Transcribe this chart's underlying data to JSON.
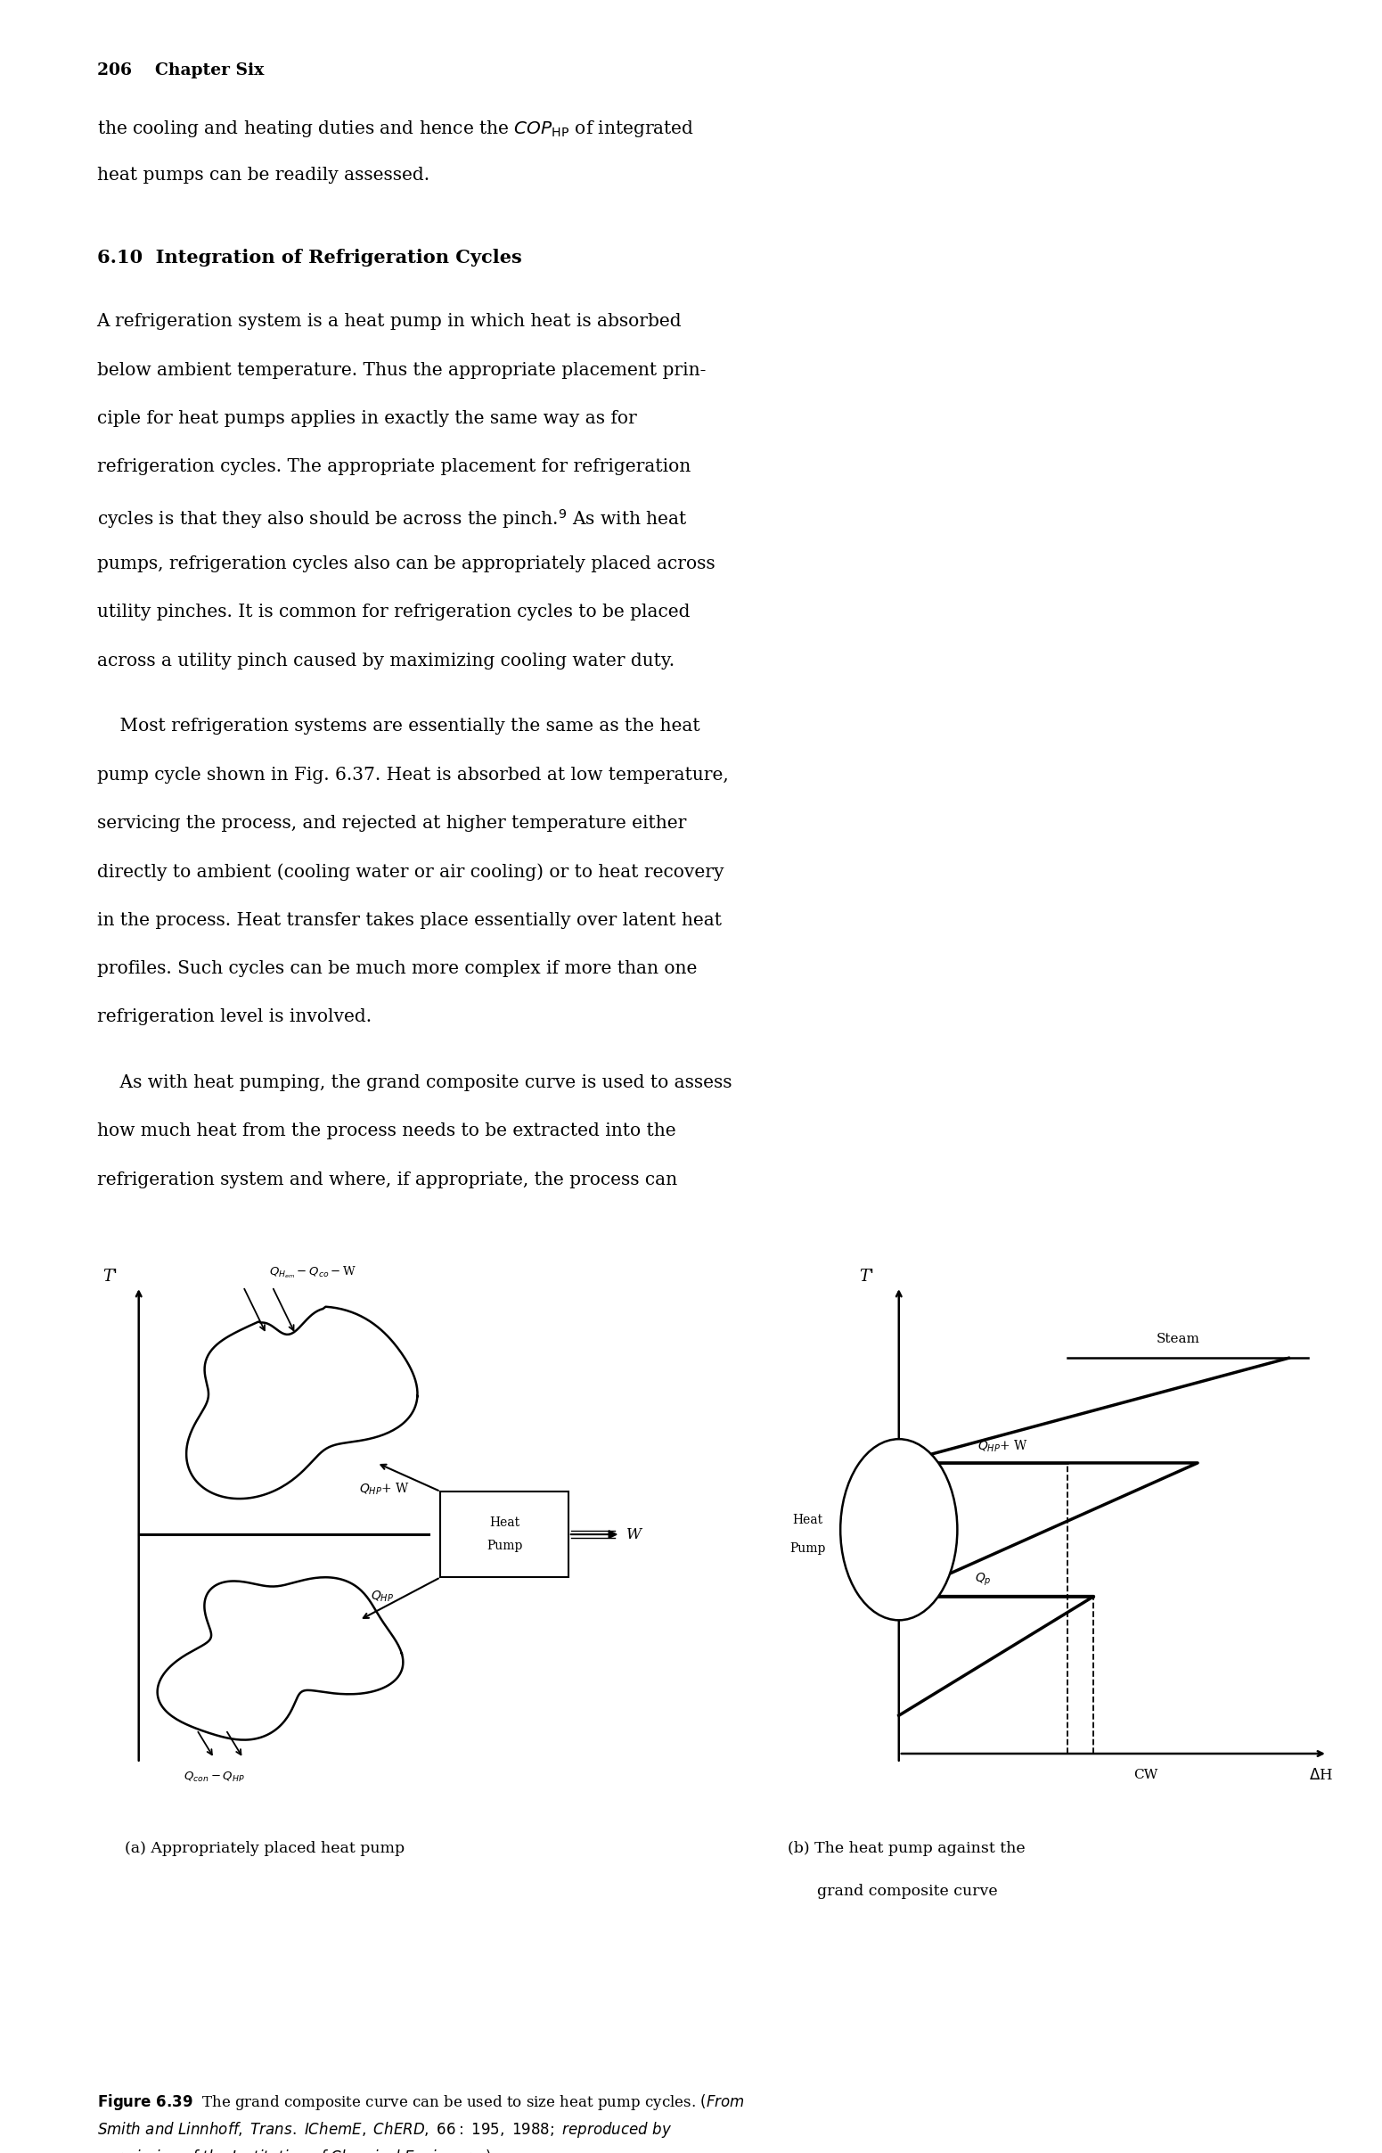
{
  "page_width": 15.51,
  "page_height": 24.15,
  "bg_color": "#ffffff",
  "lm": 0.07,
  "rm": 0.95,
  "fs_body": 14.5,
  "fs_header": 13.5,
  "lh": 0.0225,
  "header": "206    Chapter Six",
  "intro_line1": "the cooling and heating duties and hence the $\\mathit{COP}_{\\mathrm{HP}}$ of integrated",
  "intro_line2": "heat pumps can be readily assessed.",
  "section": "6.10  Integration of Refrigeration Cycles",
  "para1_lines": [
    "A refrigeration system is a heat pump in which heat is absorbed",
    "below ambient temperature. Thus the appropriate placement prin-",
    "ciple for heat pumps applies in exactly the same way as for",
    "refrigeration cycles. The appropriate placement for refrigeration",
    "cycles is that they also should be across the pinch.$^9$ As with heat",
    "pumps, refrigeration cycles also can be appropriately placed across",
    "utility pinches. It is common for refrigeration cycles to be placed",
    "across a utility pinch caused by maximizing cooling water duty."
  ],
  "para2_lines": [
    "    Most refrigeration systems are essentially the same as the heat",
    "pump cycle shown in Fig. 6.37. Heat is absorbed at low temperature,",
    "servicing the process, and rejected at higher temperature either",
    "directly to ambient (cooling water or air cooling) or to heat recovery",
    "in the process. Heat transfer takes place essentially over latent heat",
    "profiles. Such cycles can be much more complex if more than one",
    "refrigeration level is involved."
  ],
  "para3_lines": [
    "    As with heat pumping, the grand composite curve is used to assess",
    "how much heat from the process needs to be extracted into the",
    "refrigeration system and where, if appropriate, the process can"
  ],
  "caption_a": "(a) Appropriately placed heat pump",
  "caption_b1": "(b) The heat pump against the",
  "caption_b2": "      grand composite curve"
}
